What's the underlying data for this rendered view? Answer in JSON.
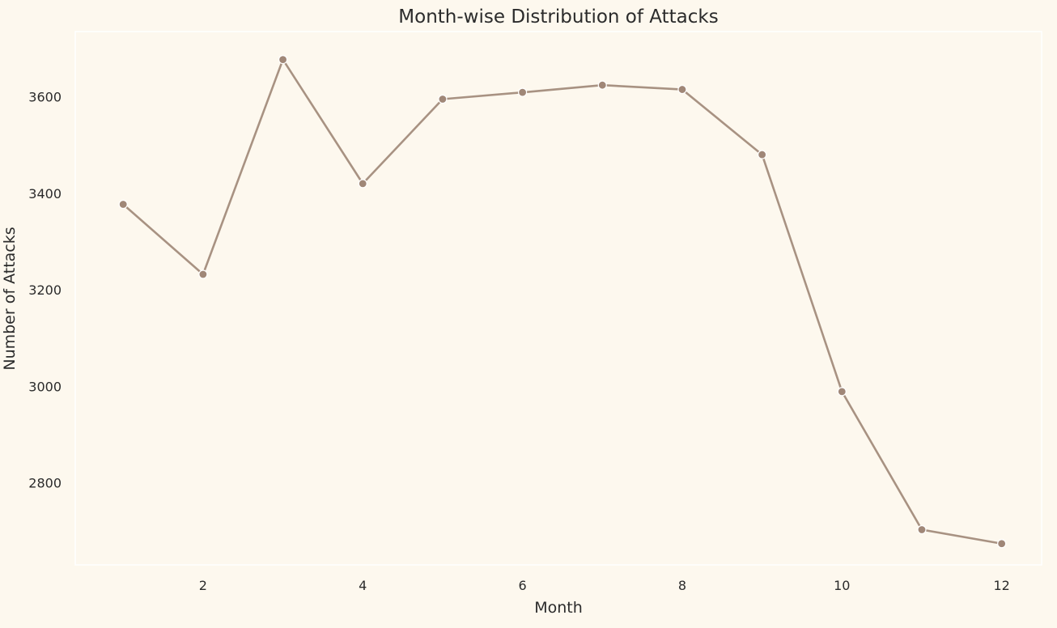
{
  "chart_data": {
    "type": "line",
    "title": "Month-wise Distribution of Attacks",
    "xlabel": "Month",
    "ylabel": "Number of Attacks",
    "x": [
      1,
      2,
      3,
      4,
      5,
      6,
      7,
      8,
      9,
      10,
      11,
      12
    ],
    "series": [
      {
        "values": [
          3377,
          3232,
          3677,
          3420,
          3595,
          3609,
          3624,
          3615,
          3480,
          2989,
          2703,
          2674
        ]
      }
    ],
    "xticks": [
      2,
      4,
      6,
      8,
      10,
      12
    ],
    "xtick_labels": [
      "2",
      "4",
      "6",
      "8",
      "10",
      "12"
    ],
    "yticks": [
      2800,
      3000,
      3200,
      3400,
      3600
    ],
    "ytick_labels": [
      "2800",
      "3000",
      "3200",
      "3400",
      "3600"
    ],
    "xlim": [
      0.4,
      12.5
    ],
    "ylim": [
      2630,
      3735
    ],
    "grid": false,
    "legend": false,
    "colors": {
      "background": "#fdf8ee",
      "line": "#a89282",
      "marker": "#a08777",
      "marker_edge": "#ffffff",
      "text": "#2b2b2b"
    }
  }
}
